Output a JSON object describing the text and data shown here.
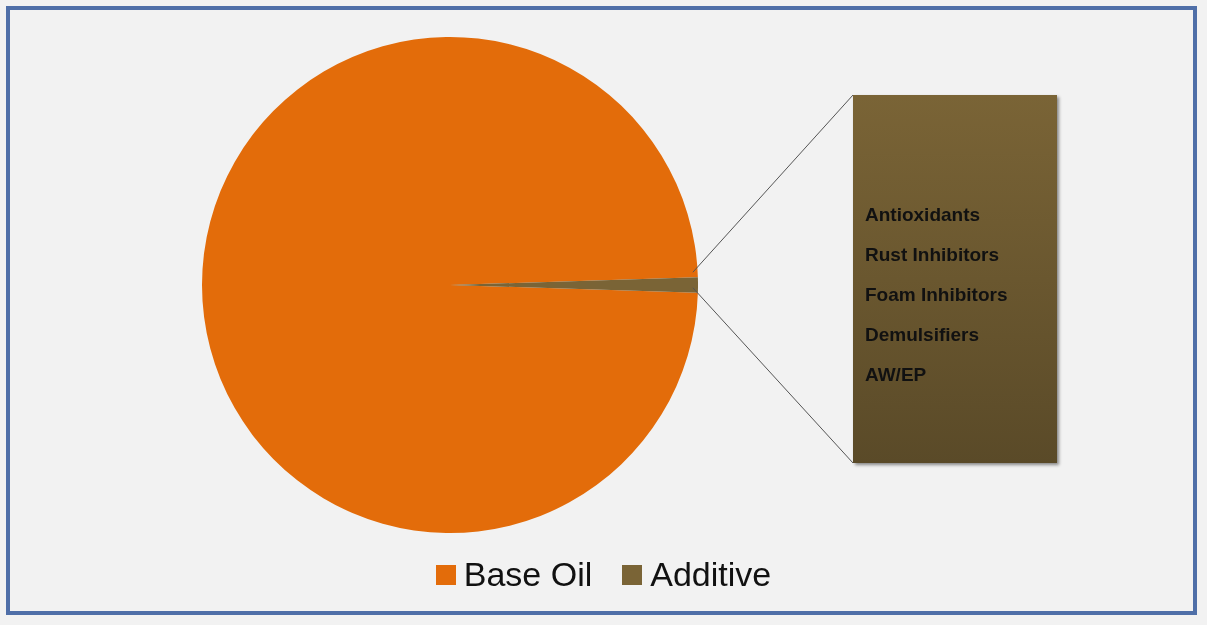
{
  "chart_data": {
    "type": "pie",
    "categories": [
      "Base Oil",
      "Additive"
    ],
    "values": [
      99,
      1
    ],
    "colors": [
      "#e36c0a",
      "#7a6436"
    ],
    "legend": "bottom",
    "annotations": [
      "Antioxidants",
      "Rust Inhibitors",
      "Foam Inhibitors",
      "Demulsifiers",
      "AW/EP"
    ]
  }
}
